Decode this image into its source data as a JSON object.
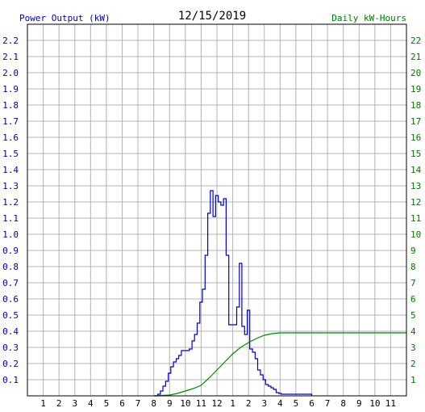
{
  "header": {
    "left_label": "Power Output (kW)",
    "date": "12/15/2019",
    "right_label": "Daily kW-Hours"
  },
  "colors": {
    "power": "#0000cc",
    "energy": "#008800",
    "grid": "#b4b4b4",
    "axis": "#000000",
    "left_text": "#0000aa",
    "right_text": "#007700",
    "date_text": "#000000"
  },
  "chart_data": {
    "type": "line",
    "title": "12/15/2019",
    "xlabel": "",
    "ylabel": "Power Output (kW)",
    "y2label": "Daily kW-Hours",
    "x_unit": "hour of day (0-24)",
    "xlim": [
      0,
      24
    ],
    "ylim": [
      0,
      2.3
    ],
    "y2lim": [
      0,
      23
    ],
    "grid": true,
    "x_tick_labels": [
      "1",
      "2",
      "3",
      "4",
      "5",
      "6",
      "7",
      "8",
      "9",
      "10",
      "11",
      "12",
      "1",
      "2",
      "3",
      "4",
      "5",
      "6",
      "7",
      "8",
      "9",
      "10",
      "11"
    ],
    "y_tick_labels": [
      "0.1",
      "0.2",
      "0.3",
      "0.4",
      "0.5",
      "0.6",
      "0.7",
      "0.8",
      "0.9",
      "1.0",
      "1.1",
      "1.2",
      "1.3",
      "1.4",
      "1.5",
      "1.6",
      "1.7",
      "1.8",
      "1.9",
      "2.0",
      "2.1",
      "2.2"
    ],
    "y2_tick_labels": [
      "1",
      "2",
      "3",
      "4",
      "5",
      "6",
      "7",
      "8",
      "9",
      "10",
      "11",
      "12",
      "13",
      "14",
      "15",
      "16",
      "17",
      "18",
      "19",
      "20",
      "21",
      "22"
    ],
    "series": [
      {
        "name": "Power Output (kW)",
        "axis": "left",
        "step": true,
        "x": [
          8.0,
          8.25,
          8.42,
          8.58,
          8.75,
          8.92,
          9.08,
          9.25,
          9.42,
          9.58,
          9.75,
          9.92,
          10.08,
          10.25,
          10.42,
          10.58,
          10.75,
          10.92,
          11.08,
          11.25,
          11.42,
          11.58,
          11.75,
          11.92,
          12.08,
          12.25,
          12.42,
          12.58,
          12.75,
          12.92,
          13.08,
          13.25,
          13.42,
          13.58,
          13.75,
          13.92,
          14.08,
          14.25,
          14.42,
          14.58,
          14.75,
          14.92,
          15.08,
          15.25,
          15.42,
          15.58,
          15.75,
          15.92,
          16.08,
          16.25,
          16.42,
          16.58,
          16.75,
          16.92,
          17.08,
          17.25,
          17.42,
          17.58,
          17.75,
          17.92,
          18.0
        ],
        "y": [
          0.0,
          0.01,
          0.03,
          0.06,
          0.09,
          0.14,
          0.18,
          0.21,
          0.23,
          0.25,
          0.28,
          0.28,
          0.28,
          0.29,
          0.34,
          0.38,
          0.45,
          0.58,
          0.66,
          0.87,
          1.13,
          1.27,
          1.11,
          1.24,
          1.2,
          1.18,
          1.22,
          0.87,
          0.44,
          0.44,
          0.44,
          0.55,
          0.82,
          0.43,
          0.38,
          0.53,
          0.29,
          0.27,
          0.23,
          0.16,
          0.13,
          0.1,
          0.07,
          0.06,
          0.05,
          0.04,
          0.02,
          0.015,
          0.01,
          0.01,
          0.01,
          0.01,
          0.01,
          0.01,
          0.01,
          0.01,
          0.01,
          0.01,
          0.01,
          0.01,
          0.0
        ]
      },
      {
        "name": "Daily kW-Hours",
        "axis": "right",
        "step": false,
        "x": [
          8.0,
          9.0,
          9.5,
          10.0,
          10.5,
          11.0,
          11.5,
          12.0,
          12.5,
          13.0,
          13.5,
          14.0,
          14.5,
          15.0,
          15.5,
          16.0,
          16.5,
          17.0,
          24.0
        ],
        "y": [
          0.0,
          0.05,
          0.15,
          0.3,
          0.45,
          0.65,
          1.1,
          1.6,
          2.1,
          2.6,
          3.0,
          3.3,
          3.55,
          3.75,
          3.85,
          3.9,
          3.9,
          3.9,
          3.9
        ]
      }
    ]
  }
}
